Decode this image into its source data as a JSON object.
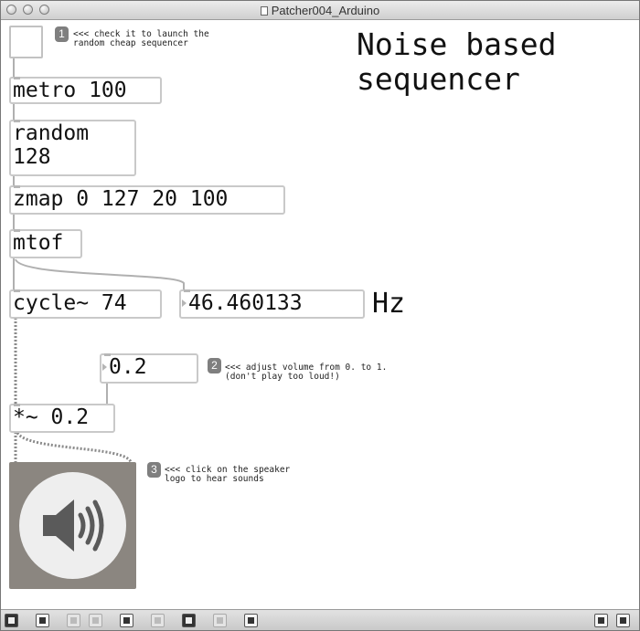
{
  "window": {
    "title": "Patcher004_Arduino"
  },
  "patch": {
    "heading_line1": "Noise based",
    "heading_line2": "sequencer",
    "objects": {
      "metro": "metro 100",
      "random": "random\n128",
      "zmap": "zmap 0 127 20 100",
      "mtof": "mtof",
      "cycle": "cycle~ 74",
      "freq_number": "46.460133",
      "volume_number": "0.2",
      "multiply": "*~ 0.2"
    },
    "hz_label": "Hz",
    "comments": [
      {
        "badge": "1",
        "line1": "<<< check it to launch the",
        "line2": "random cheap sequencer"
      },
      {
        "badge": "2",
        "line1": "<<< adjust volume from 0. to 1.",
        "line2": "(don't play too loud!)"
      },
      {
        "badge": "3",
        "line1": "<<< click on the speaker",
        "line2": "logo to hear sounds"
      }
    ]
  },
  "toolbar": {
    "icons": [
      "lock-icon",
      "presentation-icon",
      "new-object-icon",
      "new-message-icon",
      "inspector-icon",
      "info-icon",
      "clue-icon",
      "grid-icon",
      "debug-icon",
      "patcher-view-icon",
      "presentation-view-icon"
    ]
  }
}
